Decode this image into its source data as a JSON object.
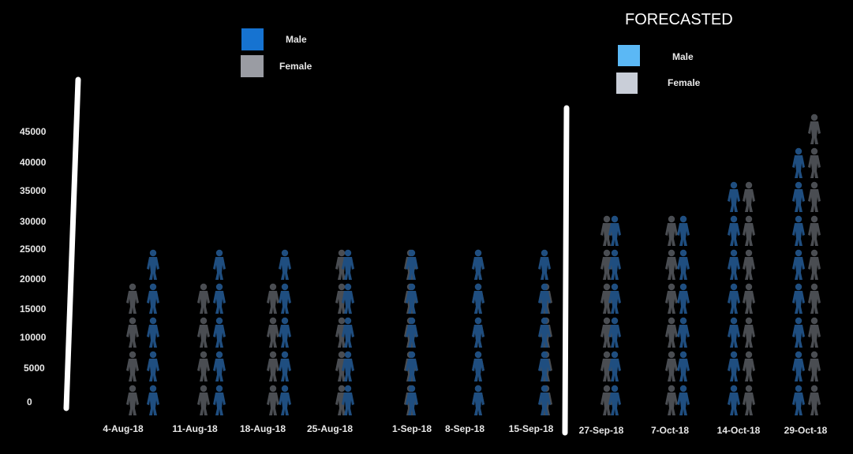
{
  "chart_data": {
    "type": "bar",
    "chart_style": "pictograph",
    "unit_per_icon": 5000,
    "categories": [
      "4-Aug-18",
      "11-Aug-18",
      "18-Aug-18",
      "25-Aug-18",
      "1-Sep-18",
      "8-Sep-18",
      "15-Sep-18",
      "27-Sep-18",
      "7-Oct-18",
      "14-Oct-18",
      "29-Oct-18"
    ],
    "series": [
      {
        "name": "Male",
        "values": [
          25000,
          25000,
          25000,
          25000,
          25000,
          25000,
          25000,
          30000,
          30000,
          35000,
          40000
        ]
      },
      {
        "name": "Female",
        "values": [
          20000,
          20000,
          20000,
          25000,
          25000,
          25000,
          20000,
          30000,
          30000,
          35000,
          45000
        ]
      }
    ],
    "forecast_start_index": 7,
    "yticks": [
      0,
      5000,
      10000,
      15000,
      20000,
      25000,
      30000,
      35000,
      40000,
      45000
    ],
    "ylim": [
      0,
      45000
    ],
    "title": "FORECASTED",
    "legends": [
      {
        "items": [
          {
            "label": "Male",
            "color": "#1673d1"
          },
          {
            "label": "Female",
            "color": "#9a9ca3"
          }
        ]
      },
      {
        "items": [
          {
            "label": "Male",
            "color": "#5bb8f5"
          },
          {
            "label": "Female",
            "color": "#c9ced8"
          }
        ]
      }
    ],
    "colors": {
      "background": "#000000",
      "male": "#1f4e80",
      "female": "#4a4d52",
      "divider": "#ffffff"
    }
  }
}
